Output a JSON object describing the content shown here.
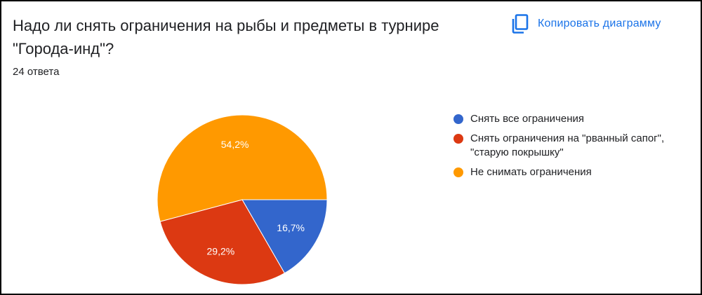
{
  "title": "Надо ли снять ограничения на рыбы и предметы в турнире \"Города-инд\"?",
  "response_count": "24 ответа",
  "copy_button": {
    "label": "Копировать диаграмму",
    "icon": "copy-icon"
  },
  "colors": {
    "accent": "#1a73e8"
  },
  "chart_data": {
    "type": "pie",
    "title": "Надо ли снять ограничения на рыбы и предметы в турнире \"Города-инд\"?",
    "legend_position": "right",
    "slices": [
      {
        "label": "Снять все ограничения",
        "value": 16.7,
        "display": "16,7%",
        "color": "#3366cc"
      },
      {
        "label": "Снять ограничения на \"рванный сапог\", \"старую покрышку\"",
        "value": 29.2,
        "display": "29,2%",
        "color": "#dc3912"
      },
      {
        "label": "Не снимать ограничения",
        "value": 54.2,
        "display": "54,2%",
        "color": "#ff9900"
      }
    ]
  }
}
